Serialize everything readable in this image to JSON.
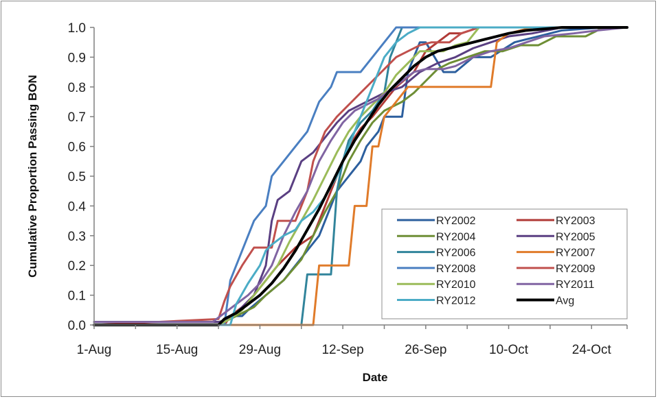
{
  "chart_data": {
    "type": "line",
    "title": "",
    "xlabel": "Date",
    "ylabel": "Cumulative Proportion Passing BON",
    "x_tick_labels": [
      {
        "label": "1-Aug",
        "day": 1
      },
      {
        "label": "15-Aug",
        "day": 15
      },
      {
        "label": "29-Aug",
        "day": 29
      },
      {
        "label": "12-Sep",
        "day": 43
      },
      {
        "label": "26-Sep",
        "day": 57
      },
      {
        "label": "10-Oct",
        "day": 71
      },
      {
        "label": "24-Oct",
        "day": 85
      }
    ],
    "x_axis": {
      "type": "date",
      "start": "1-Aug",
      "end": "31-Oct",
      "minor_tick_interval_days": 7
    },
    "y_ticks": [
      "0.0",
      "0.1",
      "0.2",
      "0.3",
      "0.4",
      "0.5",
      "0.6",
      "0.7",
      "0.8",
      "0.9",
      "1.0"
    ],
    "ylim": [
      0,
      1
    ],
    "grid": false,
    "legend": {
      "position": "lower-right",
      "columns": 2
    },
    "series": [
      {
        "name": "RY2002",
        "color": "#2c5f9e",
        "width": 3,
        "points": [
          [
            1,
            0
          ],
          [
            23,
            0
          ],
          [
            24,
            0.03
          ],
          [
            26,
            0.03
          ],
          [
            27,
            0.05
          ],
          [
            30,
            0.1
          ],
          [
            33,
            0.15
          ],
          [
            35,
            0.2
          ],
          [
            37,
            0.25
          ],
          [
            39,
            0.3
          ],
          [
            41,
            0.4
          ],
          [
            42,
            0.45
          ],
          [
            44,
            0.5
          ],
          [
            46,
            0.55
          ],
          [
            47,
            0.6
          ],
          [
            49,
            0.65
          ],
          [
            50,
            0.7
          ],
          [
            53,
            0.7
          ],
          [
            54,
            0.85
          ],
          [
            56,
            0.95
          ],
          [
            57,
            0.95
          ],
          [
            60,
            0.85
          ],
          [
            62,
            0.85
          ],
          [
            65,
            0.9
          ],
          [
            68,
            0.9
          ],
          [
            72,
            0.95
          ],
          [
            76,
            0.97
          ],
          [
            80,
            0.99
          ],
          [
            87,
            1.0
          ],
          [
            91,
            1.0
          ]
        ]
      },
      {
        "name": "RY2003",
        "color": "#b03a36",
        "width": 3,
        "points": [
          [
            1,
            0
          ],
          [
            23,
            0
          ],
          [
            24,
            0.03
          ],
          [
            26,
            0.06
          ],
          [
            28,
            0.1
          ],
          [
            30,
            0.15
          ],
          [
            32,
            0.2
          ],
          [
            35,
            0.26
          ],
          [
            38,
            0.3
          ],
          [
            40,
            0.4
          ],
          [
            42,
            0.5
          ],
          [
            44,
            0.6
          ],
          [
            46,
            0.66
          ],
          [
            48,
            0.7
          ],
          [
            50,
            0.75
          ],
          [
            52,
            0.8
          ],
          [
            55,
            0.85
          ],
          [
            57,
            0.92
          ],
          [
            59,
            0.95
          ],
          [
            61,
            0.98
          ],
          [
            63,
            0.98
          ],
          [
            66,
            1.0
          ],
          [
            91,
            1.0
          ]
        ]
      },
      {
        "name": "RY2004",
        "color": "#6e8e35",
        "width": 3,
        "points": [
          [
            1,
            0.01
          ],
          [
            22,
            0.01
          ],
          [
            24,
            0.02
          ],
          [
            26,
            0.04
          ],
          [
            28,
            0.06
          ],
          [
            30,
            0.1
          ],
          [
            33,
            0.15
          ],
          [
            36,
            0.22
          ],
          [
            38,
            0.3
          ],
          [
            40,
            0.38
          ],
          [
            42,
            0.45
          ],
          [
            44,
            0.55
          ],
          [
            46,
            0.62
          ],
          [
            48,
            0.68
          ],
          [
            50,
            0.72
          ],
          [
            53,
            0.75
          ],
          [
            55,
            0.78
          ],
          [
            57,
            0.82
          ],
          [
            59,
            0.86
          ],
          [
            61,
            0.88
          ],
          [
            64,
            0.9
          ],
          [
            67,
            0.92
          ],
          [
            70,
            0.92
          ],
          [
            73,
            0.94
          ],
          [
            76,
            0.94
          ],
          [
            79,
            0.97
          ],
          [
            84,
            0.97
          ],
          [
            87,
            1.0
          ],
          [
            91,
            1.0
          ]
        ]
      },
      {
        "name": "RY2005",
        "color": "#5a3f82",
        "width": 3,
        "points": [
          [
            1,
            0.01
          ],
          [
            22,
            0.01
          ],
          [
            24,
            0.02
          ],
          [
            26,
            0.06
          ],
          [
            28,
            0.1
          ],
          [
            30,
            0.2
          ],
          [
            31,
            0.35
          ],
          [
            32,
            0.42
          ],
          [
            34,
            0.45
          ],
          [
            36,
            0.55
          ],
          [
            38,
            0.58
          ],
          [
            40,
            0.63
          ],
          [
            42,
            0.68
          ],
          [
            44,
            0.72
          ],
          [
            46,
            0.74
          ],
          [
            48,
            0.76
          ],
          [
            50,
            0.78
          ],
          [
            53,
            0.8
          ],
          [
            56,
            0.85
          ],
          [
            59,
            0.88
          ],
          [
            62,
            0.9
          ],
          [
            65,
            0.93
          ],
          [
            68,
            0.95
          ],
          [
            71,
            0.97
          ],
          [
            75,
            0.98
          ],
          [
            80,
            1.0
          ],
          [
            91,
            1.0
          ]
        ]
      },
      {
        "name": "RY2006",
        "color": "#31849b",
        "width": 3,
        "points": [
          [
            1,
            0
          ],
          [
            36,
            0
          ],
          [
            37,
            0.17
          ],
          [
            41,
            0.17
          ],
          [
            42,
            0.45
          ],
          [
            43,
            0.55
          ],
          [
            44,
            0.62
          ],
          [
            46,
            0.68
          ],
          [
            48,
            0.72
          ],
          [
            50,
            0.78
          ],
          [
            51,
            0.9
          ],
          [
            53,
            1.0
          ],
          [
            91,
            1.0
          ]
        ]
      },
      {
        "name": "RY2007",
        "color": "#e07b2a",
        "width": 3,
        "points": [
          [
            1,
            0
          ],
          [
            38,
            0
          ],
          [
            39,
            0.2
          ],
          [
            44,
            0.2
          ],
          [
            45,
            0.4
          ],
          [
            47,
            0.4
          ],
          [
            48,
            0.6
          ],
          [
            49,
            0.6
          ],
          [
            50,
            0.7
          ],
          [
            52,
            0.75
          ],
          [
            54,
            0.8
          ],
          [
            68,
            0.8
          ],
          [
            69,
            0.95
          ],
          [
            71,
            0.98
          ],
          [
            75,
            1.0
          ],
          [
            91,
            1.0
          ]
        ]
      },
      {
        "name": "RY2008",
        "color": "#4a7fc1",
        "width": 3,
        "points": [
          [
            1,
            0
          ],
          [
            23,
            0
          ],
          [
            24,
            0.15
          ],
          [
            25,
            0.2
          ],
          [
            27,
            0.3
          ],
          [
            28,
            0.35
          ],
          [
            30,
            0.4
          ],
          [
            31,
            0.5
          ],
          [
            33,
            0.55
          ],
          [
            35,
            0.6
          ],
          [
            37,
            0.65
          ],
          [
            39,
            0.75
          ],
          [
            41,
            0.8
          ],
          [
            42,
            0.85
          ],
          [
            46,
            0.85
          ],
          [
            48,
            0.9
          ],
          [
            50,
            0.95
          ],
          [
            52,
            1.0
          ],
          [
            91,
            1.0
          ]
        ]
      },
      {
        "name": "RY2009",
        "color": "#c0504d",
        "width": 3,
        "points": [
          [
            1,
            0
          ],
          [
            22,
            0.02
          ],
          [
            23,
            0.08
          ],
          [
            24,
            0.13
          ],
          [
            26,
            0.2
          ],
          [
            28,
            0.26
          ],
          [
            31,
            0.26
          ],
          [
            32,
            0.35
          ],
          [
            35,
            0.35
          ],
          [
            37,
            0.45
          ],
          [
            38,
            0.55
          ],
          [
            40,
            0.65
          ],
          [
            42,
            0.7
          ],
          [
            44,
            0.74
          ],
          [
            46,
            0.78
          ],
          [
            48,
            0.82
          ],
          [
            50,
            0.86
          ],
          [
            52,
            0.9
          ],
          [
            54,
            0.92
          ],
          [
            56,
            0.94
          ],
          [
            58,
            0.95
          ],
          [
            61,
            0.95
          ],
          [
            63,
            0.98
          ],
          [
            66,
            1.0
          ],
          [
            91,
            1.0
          ]
        ]
      },
      {
        "name": "RY2010",
        "color": "#9bbb59",
        "width": 3,
        "points": [
          [
            1,
            0
          ],
          [
            22,
            0
          ],
          [
            24,
            0.02
          ],
          [
            26,
            0.05
          ],
          [
            28,
            0.1
          ],
          [
            30,
            0.15
          ],
          [
            32,
            0.2
          ],
          [
            34,
            0.28
          ],
          [
            36,
            0.35
          ],
          [
            38,
            0.42
          ],
          [
            40,
            0.5
          ],
          [
            42,
            0.58
          ],
          [
            44,
            0.65
          ],
          [
            46,
            0.7
          ],
          [
            48,
            0.74
          ],
          [
            50,
            0.78
          ],
          [
            52,
            0.84
          ],
          [
            54,
            0.88
          ],
          [
            56,
            0.92
          ],
          [
            58,
            0.92
          ],
          [
            60,
            0.92
          ],
          [
            62,
            0.94
          ],
          [
            64,
            0.95
          ],
          [
            66,
            1.0
          ],
          [
            91,
            1.0
          ]
        ]
      },
      {
        "name": "RY2011",
        "color": "#8064a2",
        "width": 3,
        "points": [
          [
            1,
            0.01
          ],
          [
            21,
            0.01
          ],
          [
            23,
            0.04
          ],
          [
            25,
            0.07
          ],
          [
            27,
            0.1
          ],
          [
            29,
            0.14
          ],
          [
            31,
            0.2
          ],
          [
            33,
            0.3
          ],
          [
            35,
            0.38
          ],
          [
            37,
            0.45
          ],
          [
            39,
            0.55
          ],
          [
            41,
            0.62
          ],
          [
            43,
            0.68
          ],
          [
            45,
            0.72
          ],
          [
            47,
            0.74
          ],
          [
            49,
            0.76
          ],
          [
            51,
            0.79
          ],
          [
            53,
            0.82
          ],
          [
            55,
            0.85
          ],
          [
            57,
            0.86
          ],
          [
            60,
            0.86
          ],
          [
            62,
            0.87
          ],
          [
            65,
            0.9
          ],
          [
            68,
            0.92
          ],
          [
            71,
            0.93
          ],
          [
            74,
            0.95
          ],
          [
            77,
            0.97
          ],
          [
            82,
            0.98
          ],
          [
            86,
            0.99
          ],
          [
            91,
            1.0
          ]
        ]
      },
      {
        "name": "RY2012",
        "color": "#4bacc6",
        "width": 3,
        "points": [
          [
            1,
            0
          ],
          [
            24,
            0
          ],
          [
            25,
            0.07
          ],
          [
            27,
            0.14
          ],
          [
            29,
            0.2
          ],
          [
            30,
            0.25
          ],
          [
            31,
            0.27
          ],
          [
            33,
            0.3
          ],
          [
            35,
            0.32
          ],
          [
            36,
            0.35
          ],
          [
            38,
            0.38
          ],
          [
            40,
            0.43
          ],
          [
            42,
            0.5
          ],
          [
            44,
            0.6
          ],
          [
            46,
            0.7
          ],
          [
            48,
            0.8
          ],
          [
            50,
            0.9
          ],
          [
            52,
            0.95
          ],
          [
            54,
            0.98
          ],
          [
            56,
            1.0
          ],
          [
            91,
            1.0
          ]
        ]
      },
      {
        "name": "Avg",
        "color": "#000000",
        "width": 4,
        "points": [
          [
            1,
            0
          ],
          [
            22,
            0
          ],
          [
            23,
            0.02
          ],
          [
            25,
            0.04
          ],
          [
            27,
            0.07
          ],
          [
            29,
            0.1
          ],
          [
            31,
            0.14
          ],
          [
            33,
            0.19
          ],
          [
            35,
            0.25
          ],
          [
            37,
            0.32
          ],
          [
            39,
            0.39
          ],
          [
            41,
            0.47
          ],
          [
            43,
            0.55
          ],
          [
            45,
            0.62
          ],
          [
            47,
            0.68
          ],
          [
            49,
            0.74
          ],
          [
            51,
            0.79
          ],
          [
            53,
            0.83
          ],
          [
            55,
            0.87
          ],
          [
            57,
            0.9
          ],
          [
            59,
            0.92
          ],
          [
            61,
            0.93
          ],
          [
            63,
            0.94
          ],
          [
            65,
            0.95
          ],
          [
            67,
            0.96
          ],
          [
            69,
            0.97
          ],
          [
            71,
            0.98
          ],
          [
            74,
            0.99
          ],
          [
            80,
            1.0
          ],
          [
            91,
            1.0
          ]
        ]
      }
    ]
  }
}
